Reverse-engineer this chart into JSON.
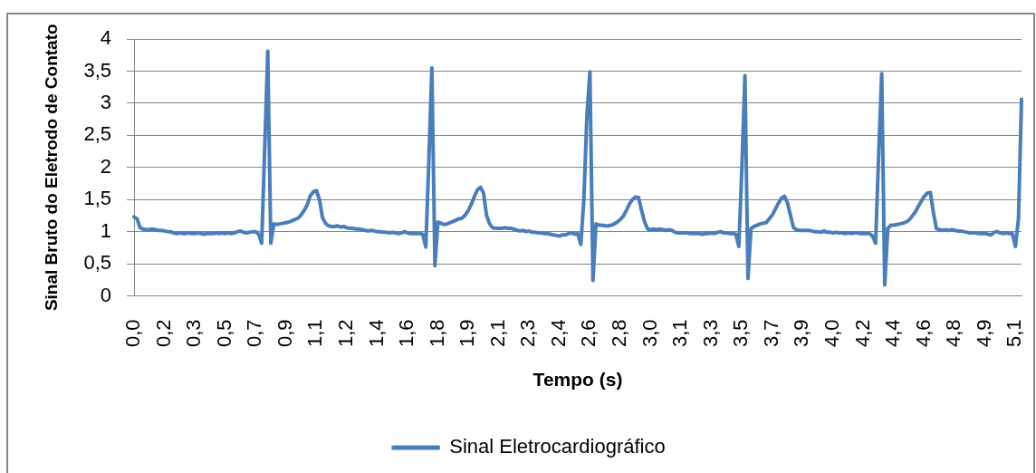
{
  "chart_data": {
    "type": "line",
    "xlabel": "Tempo (s)",
    "ylabel": "Sinal Bruto do Eletrodo de Contato",
    "categories": [
      "0,0",
      null,
      null,
      null,
      null,
      null,
      null,
      null,
      null,
      null,
      "0,2",
      null,
      null,
      null,
      null,
      null,
      null,
      null,
      null,
      null,
      "0,3",
      null,
      null,
      null,
      null,
      null,
      null,
      null,
      null,
      null,
      "0,5",
      null,
      null,
      null,
      null,
      null,
      null,
      null,
      null,
      null,
      "0,7",
      null,
      null,
      null,
      null,
      null,
      null,
      null,
      null,
      null,
      "0,9",
      null,
      null,
      null,
      null,
      null,
      null,
      null,
      null,
      null,
      "1,1",
      null,
      null,
      null,
      null,
      null,
      null,
      null,
      null,
      null,
      "1,2",
      null,
      null,
      null,
      null,
      null,
      null,
      null,
      null,
      null,
      "1,4",
      null,
      null,
      null,
      null,
      null,
      null,
      null,
      null,
      null,
      "1,6",
      null,
      null,
      null,
      null,
      null,
      null,
      null,
      null,
      null,
      "1,8",
      null,
      null,
      null,
      null,
      null,
      null,
      null,
      null,
      null,
      "1,9",
      null,
      null,
      null,
      null,
      null,
      null,
      null,
      null,
      null,
      "2,1",
      null,
      null,
      null,
      null,
      null,
      null,
      null,
      null,
      null,
      "2,3",
      null,
      null,
      null,
      null,
      null,
      null,
      null,
      null,
      null,
      "2,4",
      null,
      null,
      null,
      null,
      null,
      null,
      null,
      null,
      null,
      "2,6",
      null,
      null,
      null,
      null,
      null,
      null,
      null,
      null,
      null,
      "2,8",
      null,
      null,
      null,
      null,
      null,
      null,
      null,
      null,
      null,
      "3,0",
      null,
      null,
      null,
      null,
      null,
      null,
      null,
      null,
      null,
      "3,1",
      null,
      null,
      null,
      null,
      null,
      null,
      null,
      null,
      null,
      "3,3",
      null,
      null,
      null,
      null,
      null,
      null,
      null,
      null,
      null,
      "3,5",
      null,
      null,
      null,
      null,
      null,
      null,
      null,
      null,
      null,
      "3,7",
      null,
      null,
      null,
      null,
      null,
      null,
      null,
      null,
      null,
      "3,9",
      null,
      null,
      null,
      null,
      null,
      null,
      null,
      null,
      null,
      "4,0",
      null,
      null,
      null,
      null,
      null,
      null,
      null,
      null,
      null,
      "4,2",
      null,
      null,
      null,
      null,
      null,
      null,
      null,
      null,
      null,
      "4,4",
      null,
      null,
      null,
      null,
      null,
      null,
      null,
      null,
      null,
      "4,6",
      null,
      null,
      null,
      null,
      null,
      null,
      null,
      null,
      null,
      "4,8",
      null,
      null,
      null,
      null,
      null,
      null,
      null,
      null,
      null,
      "4,9",
      null,
      null,
      null,
      null,
      null,
      null,
      null,
      null,
      null,
      "5,1",
      null,
      null
    ],
    "series": [
      {
        "name": "Sinal Eletrocardiográfico",
        "color": "#4a7ebb",
        "values": [
          1.23,
          1.2,
          1.06,
          1.04,
          1.03,
          1.03,
          1.04,
          1.03,
          1.02,
          1.02,
          1.01,
          1.0,
          1.0,
          0.98,
          0.97,
          0.98,
          0.97,
          0.97,
          0.98,
          0.97,
          0.97,
          0.98,
          0.97,
          0.96,
          0.97,
          0.97,
          0.97,
          0.98,
          0.97,
          0.98,
          0.97,
          0.98,
          0.97,
          0.98,
          1.0,
          1.01,
          0.99,
          0.98,
          0.99,
          1.0,
          1.0,
          0.96,
          0.82,
          2.3,
          3.81,
          0.82,
          1.12,
          1.11,
          1.12,
          1.13,
          1.14,
          1.15,
          1.17,
          1.19,
          1.21,
          1.26,
          1.33,
          1.42,
          1.56,
          1.62,
          1.64,
          1.5,
          1.22,
          1.13,
          1.09,
          1.08,
          1.08,
          1.09,
          1.07,
          1.08,
          1.06,
          1.05,
          1.05,
          1.04,
          1.04,
          1.03,
          1.02,
          1.01,
          1.02,
          1.01,
          1.0,
          1.0,
          0.99,
          0.99,
          0.98,
          0.99,
          0.98,
          0.97,
          0.98,
          1.0,
          0.98,
          0.97,
          0.97,
          0.97,
          0.97,
          0.96,
          0.76,
          2.1,
          3.55,
          0.47,
          1.15,
          1.13,
          1.11,
          1.12,
          1.14,
          1.16,
          1.18,
          1.2,
          1.21,
          1.26,
          1.33,
          1.43,
          1.55,
          1.65,
          1.69,
          1.6,
          1.25,
          1.12,
          1.06,
          1.05,
          1.05,
          1.05,
          1.06,
          1.05,
          1.05,
          1.04,
          1.02,
          1.01,
          1.02,
          1.0,
          1.01,
          0.99,
          0.99,
          0.98,
          0.98,
          0.97,
          0.97,
          0.96,
          0.95,
          0.94,
          0.93,
          0.95,
          0.95,
          0.97,
          0.98,
          0.96,
          0.97,
          0.8,
          1.5,
          2.8,
          3.49,
          0.24,
          1.12,
          1.1,
          1.1,
          1.09,
          1.09,
          1.1,
          1.12,
          1.15,
          1.19,
          1.24,
          1.33,
          1.43,
          1.5,
          1.54,
          1.53,
          1.33,
          1.15,
          1.04,
          1.03,
          1.04,
          1.03,
          1.04,
          1.03,
          1.02,
          1.03,
          1.02,
          0.99,
          0.98,
          0.98,
          0.98,
          0.98,
          0.97,
          0.97,
          0.97,
          0.97,
          0.96,
          0.97,
          0.97,
          0.98,
          0.97,
          0.99,
          1.0,
          0.98,
          0.98,
          0.97,
          0.97,
          0.96,
          0.77,
          2.0,
          3.43,
          0.27,
          1.05,
          1.08,
          1.1,
          1.12,
          1.13,
          1.14,
          1.2,
          1.26,
          1.35,
          1.44,
          1.52,
          1.55,
          1.45,
          1.25,
          1.06,
          1.03,
          1.02,
          1.02,
          1.02,
          1.02,
          1.01,
          1.0,
          1.0,
          0.99,
          1.01,
          0.99,
          0.99,
          0.98,
          0.99,
          0.98,
          0.98,
          0.97,
          0.98,
          0.97,
          0.98,
          0.98,
          0.97,
          0.97,
          0.97,
          0.97,
          0.93,
          0.82,
          2.2,
          3.46,
          0.17,
          1.05,
          1.1,
          1.1,
          1.11,
          1.12,
          1.13,
          1.15,
          1.18,
          1.24,
          1.3,
          1.39,
          1.47,
          1.55,
          1.6,
          1.61,
          1.3,
          1.05,
          1.03,
          1.02,
          1.03,
          1.02,
          1.03,
          1.02,
          1.01,
          1.01,
          1.0,
          0.99,
          0.98,
          0.98,
          0.98,
          0.97,
          0.97,
          0.97,
          0.96,
          0.95,
          0.99,
          1.0,
          0.98,
          0.97,
          0.98,
          0.97,
          0.97,
          0.77,
          1.2,
          3.06
        ]
      }
    ],
    "ylim": [
      0,
      4
    ],
    "yticks": [
      0,
      {
        "value": 0.5,
        "label": "0,5"
      },
      1,
      {
        "value": 1.5,
        "label": "1,5"
      },
      2,
      {
        "value": 2.5,
        "label": "2,5"
      },
      3,
      {
        "value": 3.5,
        "label": "3,5"
      },
      4
    ],
    "grid": "y",
    "legend": "bottom",
    "marker": "none",
    "line_style": "solid"
  }
}
